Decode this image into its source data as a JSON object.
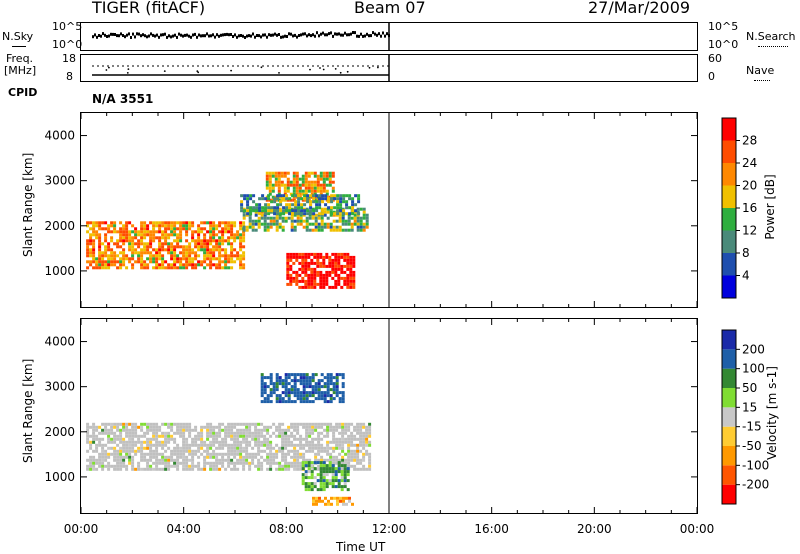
{
  "header": {
    "station": "TIGER (fitACF)",
    "beam": "Beam 07",
    "date": "27/Mar/2009"
  },
  "strip_labels": {
    "nsky": "N.Sky",
    "nsky_ticks": [
      "10^5",
      "10^0"
    ],
    "nsearch": "N.Search",
    "nsearch_ticks": [
      "10^5",
      "10^0"
    ],
    "freq_line1": "Freq.",
    "freq_line2": "[MHz]",
    "freq_ticks": [
      "18",
      "8"
    ],
    "nave": "Nave",
    "nave_ticks": [
      "60",
      "0"
    ],
    "cpid": "CPID",
    "cpid_value": "N/A 3551"
  },
  "colors": {
    "power_scale": [
      "#0000dd",
      "#1f4fae",
      "#4a8a7a",
      "#2fae3f",
      "#f0c000",
      "#ff8800",
      "#ff4d00",
      "#ff0000"
    ],
    "velocity_scale": [
      "#ff0000",
      "#ff5500",
      "#ff9900",
      "#ffcc33",
      "#c8c8c8",
      "#80dd33",
      "#338833",
      "#1e5fa8",
      "#1a2aa8"
    ],
    "ground_scatter": "#c0c0c0"
  },
  "chart_data": [
    {
      "type": "heatmap",
      "panel": "power",
      "xlabel": "",
      "ylabel": "Slant Range [km]",
      "xlim_hours": [
        0,
        24
      ],
      "ylim_km": [
        200,
        4500
      ],
      "y_ticks": [
        "1000",
        "2000",
        "3000",
        "4000"
      ],
      "y_tick_values": [
        1000,
        2000,
        3000,
        4000
      ],
      "colorbar": {
        "label": "Power [dB]",
        "tick_labels": [
          "4",
          "8",
          "12",
          "16",
          "20",
          "24",
          "28"
        ],
        "tick_values": [
          4,
          8,
          12,
          16,
          20,
          24,
          28
        ],
        "range": [
          0,
          32
        ]
      },
      "regions": [
        {
          "name": "main band",
          "hours": [
            0.2,
            6.3
          ],
          "range_km": [
            1100,
            2100
          ],
          "level": 22
        },
        {
          "name": "main band extension",
          "hours": [
            6.3,
            11.2
          ],
          "range_km": [
            1900,
            2400
          ],
          "level": 14
        },
        {
          "name": "strong patch",
          "hours": [
            8.0,
            10.6
          ],
          "range_km": [
            620,
            1400
          ],
          "level": 31
        },
        {
          "name": "upper arc",
          "hours": [
            7.2,
            9.8
          ],
          "range_km": [
            2600,
            3200
          ],
          "level": 20
        },
        {
          "name": "upper band",
          "hours": [
            6.2,
            10.8
          ],
          "range_km": [
            2250,
            2700
          ],
          "level": 12
        }
      ]
    },
    {
      "type": "heatmap",
      "panel": "velocity",
      "xlabel": "Time UT",
      "ylabel": "Slant Range [km]",
      "xlim_hours": [
        0,
        24
      ],
      "ylim_km": [
        200,
        4500
      ],
      "x_ticks": [
        "00:00",
        "04:00",
        "08:00",
        "12:00",
        "16:00",
        "20:00",
        "00:00"
      ],
      "x_tick_hours": [
        0,
        4,
        8,
        12,
        16,
        20,
        24
      ],
      "y_ticks": [
        "1000",
        "2000",
        "3000",
        "4000"
      ],
      "y_tick_values": [
        1000,
        2000,
        3000,
        4000
      ],
      "colorbar": {
        "label": "Velocity [m s-1]",
        "tick_labels": [
          "200",
          "100",
          "50",
          "15",
          "-15",
          "-50",
          "-100",
          "-200"
        ],
        "tick_values": [
          200,
          100,
          50,
          15,
          -15,
          -50,
          -100,
          -200
        ]
      },
      "regions": [
        {
          "name": "ground scatter band",
          "hours": [
            0.2,
            11.3
          ],
          "range_km": [
            1150,
            2200
          ],
          "velocity": 0,
          "ground": true
        },
        {
          "name": "green patch",
          "hours": [
            8.6,
            10.4
          ],
          "range_km": [
            720,
            1350
          ],
          "velocity": 60
        },
        {
          "name": "upper blue/green",
          "hours": [
            7.0,
            10.2
          ],
          "range_km": [
            2700,
            3300
          ],
          "velocity": 150
        },
        {
          "name": "low orange",
          "hours": [
            9.0,
            10.6
          ],
          "range_km": [
            380,
            560
          ],
          "velocity": -50
        }
      ]
    }
  ]
}
